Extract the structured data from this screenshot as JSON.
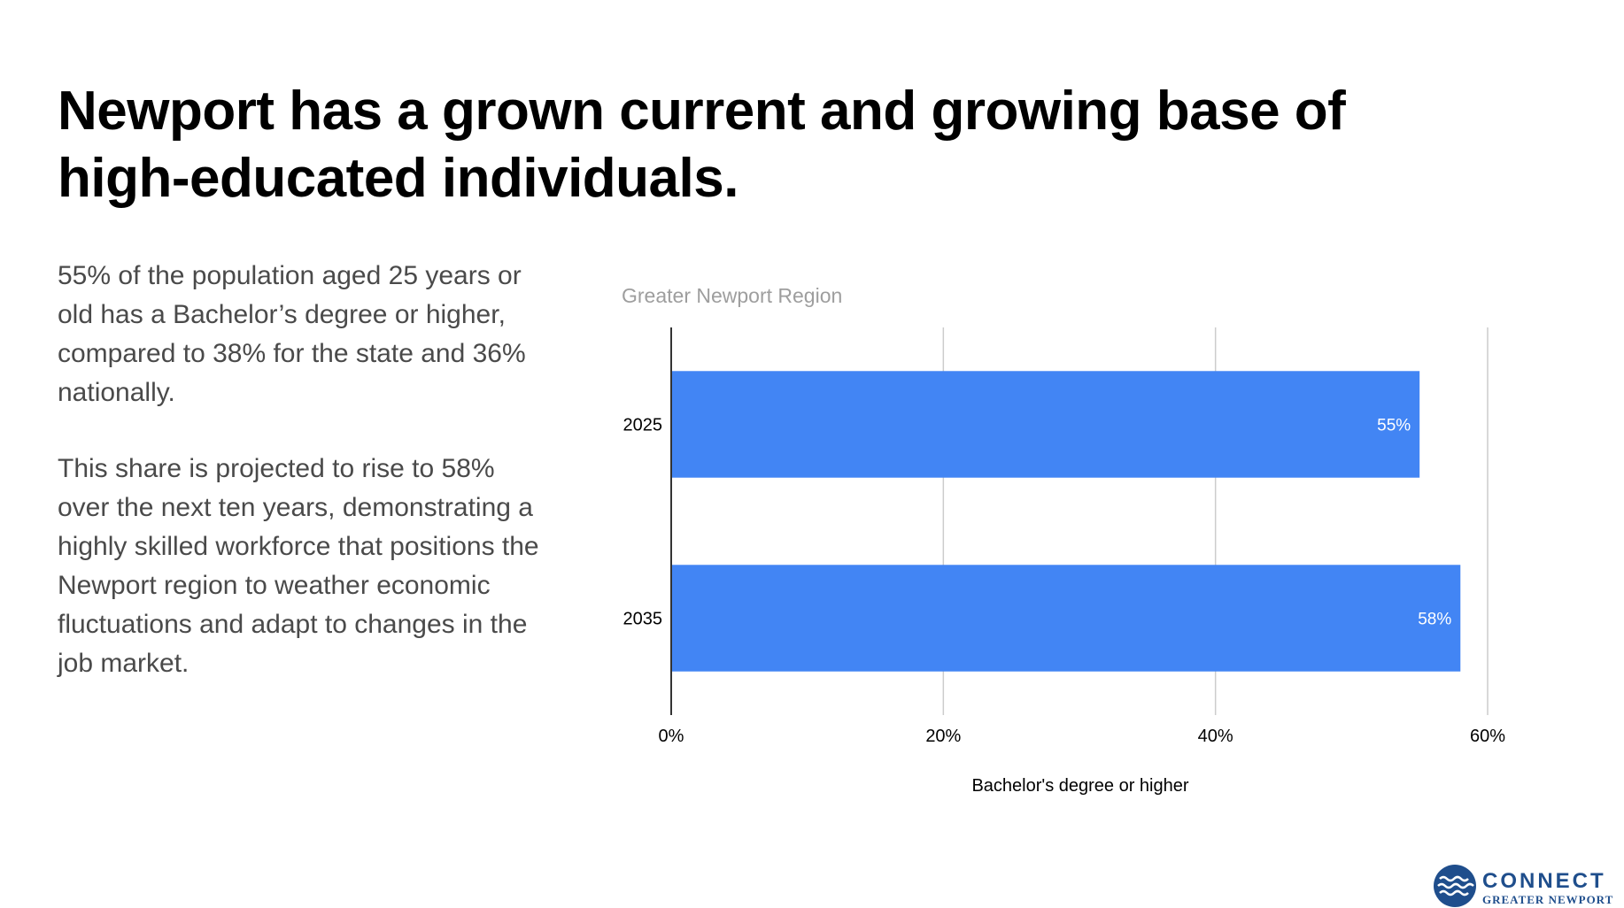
{
  "slide": {
    "title": "Newport has a grown current and growing base of high-educated individuals.",
    "paragraph1": "55% of the population aged 25 years or old has a Bachelor’s degree or higher, compared to 38% for the state and 36% nationally.",
    "paragraph2": "This share is projected to rise to 58% over the next ten years, demonstrating a highly skilled workforce that positions the Newport region to weather economic fluctuations and adapt to changes in the job market."
  },
  "logo": {
    "line1": "CONNECT",
    "line2": "GREATER NEWPORT",
    "color": "#1f4e8c",
    "icon": "waves-circle-icon"
  },
  "chart_data": {
    "type": "bar",
    "orientation": "horizontal",
    "title": "Greater Newport Region",
    "xlabel": "Bachelor's degree or higher",
    "ylabel": "",
    "categories": [
      "2025",
      "2035"
    ],
    "values": [
      55,
      58
    ],
    "data_labels": [
      "55%",
      "58%"
    ],
    "xlim": [
      0,
      60
    ],
    "xticks": [
      0,
      20,
      40,
      60
    ],
    "xtick_labels": [
      "0%",
      "20%",
      "40%",
      "60%"
    ],
    "grid": true,
    "legend": "none",
    "bar_color": "#4285f4"
  }
}
